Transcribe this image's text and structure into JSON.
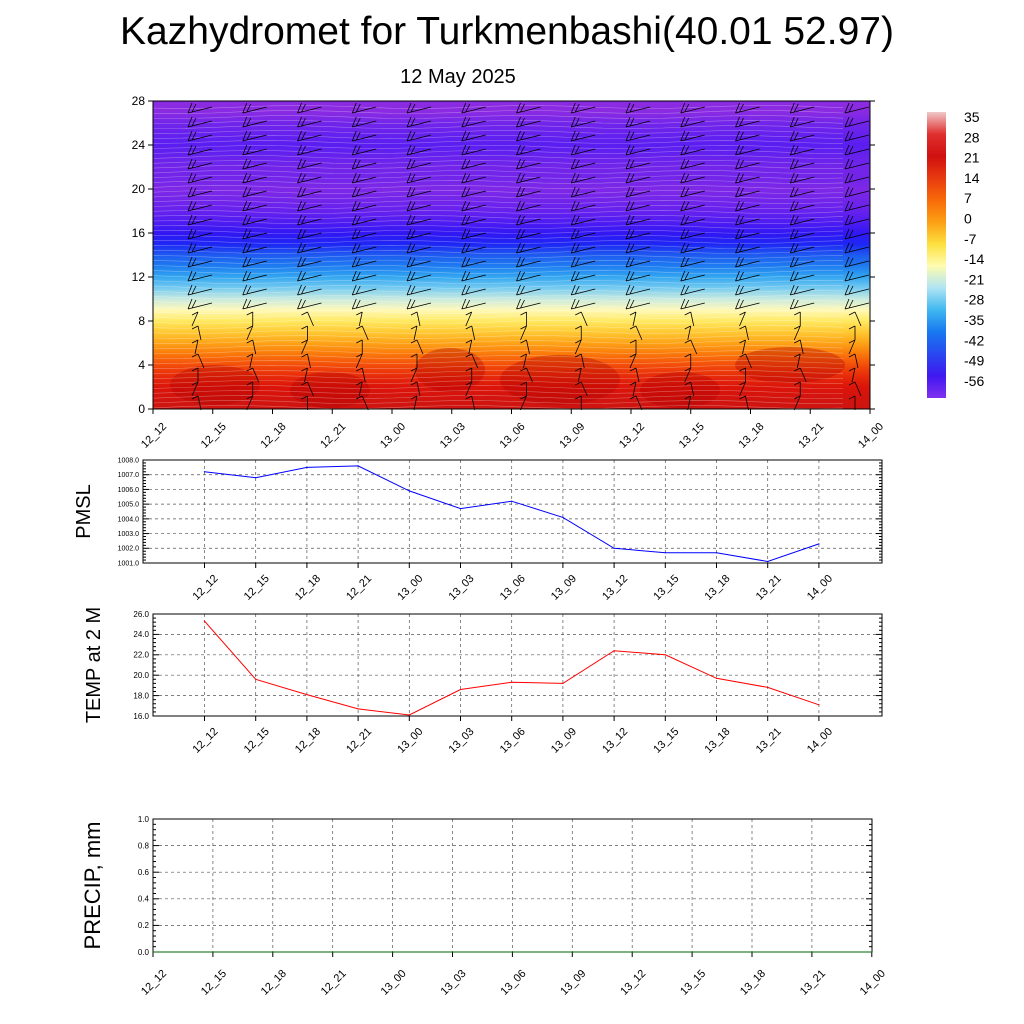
{
  "header": {
    "title": "Kazhydromet for Turkmenbashi(40.01 52.97)",
    "date": "12 May 2025"
  },
  "chart_data": [
    {
      "type": "heatmap",
      "title": "Kazhydromet for Turkmenbashi(40.01 52.97)",
      "subtitle": "12 May 2025",
      "x_ticks": [
        "12_12",
        "12_15",
        "12_18",
        "12_21",
        "13_00",
        "13_03",
        "13_06",
        "13_09",
        "13_12",
        "13_15",
        "13_18",
        "13_21",
        "14_00"
      ],
      "y_ticks": [
        "0",
        "4",
        "8",
        "12",
        "16",
        "20",
        "24",
        "28"
      ],
      "ylim": [
        0,
        28
      ],
      "levels": [
        0,
        1,
        2,
        3,
        4,
        5,
        6,
        7,
        8,
        9,
        10,
        11,
        12,
        13,
        14,
        15,
        16,
        17,
        18,
        19,
        20,
        21,
        22,
        23,
        24,
        25,
        26,
        27,
        28
      ],
      "values_approx": [
        26,
        24,
        21,
        17,
        12,
        7,
        2,
        -3,
        -8,
        -13,
        -18,
        -24,
        -30,
        -36,
        -42,
        -48,
        -52,
        -55,
        -57,
        -58,
        -59,
        -58,
        -58,
        -57,
        -56,
        -57,
        -58,
        -60,
        -60
      ],
      "colorbar": {
        "labels": [
          "35",
          "28",
          "21",
          "14",
          "7",
          "0",
          "-7",
          "-14",
          "-21",
          "-28",
          "-35",
          "-42",
          "-49",
          "-56"
        ],
        "colors": [
          "#f0c8c8",
          "#e03030",
          "#d01010",
          "#e83a10",
          "#f86a08",
          "#fca014",
          "#fde040",
          "#fefcb0",
          "#b0e4f4",
          "#40b8f0",
          "#1878f0",
          "#2848f0",
          "#4018f0",
          "#8030f0"
        ]
      },
      "wind_barbs": true
    },
    {
      "type": "line",
      "ylabel": "PMSL",
      "x": [
        "12_12",
        "12_15",
        "12_18",
        "12_21",
        "13_00",
        "13_03",
        "13_06",
        "13_09",
        "13_12",
        "13_15",
        "13_18",
        "13_21",
        "14_00"
      ],
      "ylim": [
        1001.0,
        1008.0
      ],
      "y_ticks": [
        "1001.0",
        "1002.0",
        "1003.0",
        "1004.0",
        "1005.0",
        "1006.0",
        "1007.0",
        "1008.0"
      ],
      "series": [
        {
          "values": [
            1007.2,
            1006.8,
            1007.5,
            1007.6,
            1005.9,
            1004.7,
            1005.2,
            1004.1,
            1002.0,
            1001.7,
            1001.7,
            1001.1,
            1002.3
          ],
          "color": "#0000ff"
        }
      ],
      "grid": true
    },
    {
      "type": "line",
      "ylabel": "TEMP at 2 M",
      "x": [
        "12_12",
        "12_15",
        "12_18",
        "12_21",
        "13_00",
        "13_03",
        "13_06",
        "13_09",
        "13_12",
        "13_15",
        "13_18",
        "13_21",
        "14_00"
      ],
      "ylim": [
        16.0,
        26.0
      ],
      "y_ticks": [
        "16.0",
        "18.0",
        "20.0",
        "22.0",
        "24.0",
        "26.0"
      ],
      "series": [
        {
          "values": [
            25.3,
            19.6,
            18.1,
            16.7,
            16.1,
            18.6,
            19.3,
            19.2,
            22.4,
            22.0,
            19.7,
            18.8,
            17.1
          ],
          "color": "#ff0000"
        }
      ],
      "grid": true
    },
    {
      "type": "line",
      "ylabel": "PRECIP, mm",
      "x": [
        "12_12",
        "12_15",
        "12_18",
        "12_21",
        "13_00",
        "13_03",
        "13_06",
        "13_09",
        "13_12",
        "13_15",
        "13_18",
        "13_21",
        "14_00"
      ],
      "ylim": [
        0.0,
        1.0
      ],
      "y_ticks": [
        "0.0",
        "0.2",
        "0.4",
        "0.6",
        "0.8",
        "1.0"
      ],
      "series": [
        {
          "values": [
            0,
            0,
            0,
            0,
            0,
            0,
            0,
            0,
            0,
            0,
            0,
            0,
            0
          ],
          "color": "#006400"
        }
      ],
      "grid": true
    }
  ]
}
